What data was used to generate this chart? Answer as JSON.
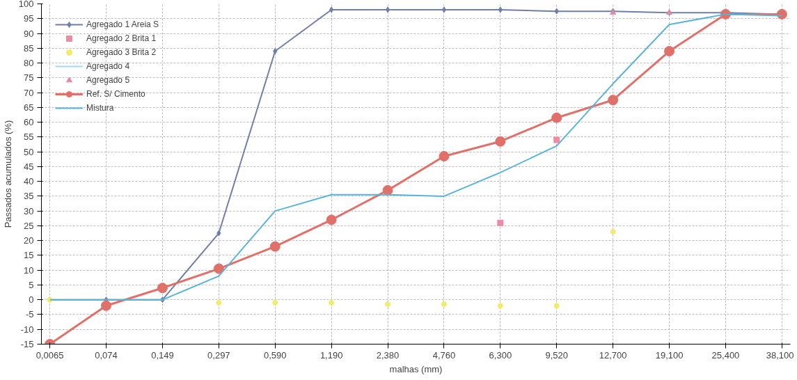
{
  "chart_data": {
    "type": "line",
    "xlabel": "malhas (mm)",
    "ylabel": "Passados acumulados (%)",
    "categories": [
      "0,0065",
      "0,074",
      "0,149",
      "0,297",
      "0,590",
      "1,190",
      "2,380",
      "4,760",
      "6,300",
      "9,520",
      "12,700",
      "19,100",
      "25,400",
      "38,100"
    ],
    "ylim": [
      -15,
      100
    ],
    "yticks": [
      -15,
      -10,
      -5,
      0,
      5,
      10,
      15,
      20,
      25,
      30,
      35,
      40,
      45,
      50,
      55,
      60,
      65,
      70,
      75,
      80,
      85,
      90,
      95,
      100
    ],
    "grid": true,
    "legend": "top left",
    "series": [
      {
        "name": "Agregado 1 Areia S",
        "marker": "diamond",
        "color": "#6f7fa8",
        "values": [
          0,
          0,
          0,
          22.5,
          84,
          98,
          98,
          98,
          98,
          97.5,
          97.5,
          97,
          97,
          96.5
        ]
      },
      {
        "name": "Agregado 2 Brita 1",
        "type": "scatter",
        "marker": "square",
        "color": "#f08aa0",
        "values": [
          null,
          null,
          null,
          null,
          null,
          null,
          null,
          null,
          26,
          54,
          null,
          null,
          null,
          null
        ]
      },
      {
        "name": "Agregado 3 Brita 2",
        "type": "scatter",
        "marker": "circle",
        "color": "#f2ec6a",
        "values": [
          0,
          null,
          null,
          -1,
          -1,
          -1,
          -1.5,
          -1.5,
          -2,
          -2,
          23,
          null,
          null,
          null
        ]
      },
      {
        "name": "Agregado 4",
        "marker": "none",
        "color": "#9fdcef",
        "values": [
          null,
          null,
          null,
          null,
          null,
          null,
          null,
          null,
          null,
          null,
          null,
          null,
          null,
          null
        ]
      },
      {
        "name": "Agregado 5",
        "type": "scatter",
        "marker": "triangle",
        "color": "#e08aa8",
        "values": [
          null,
          null,
          null,
          null,
          null,
          null,
          null,
          null,
          null,
          null,
          97,
          97,
          null,
          null
        ]
      },
      {
        "name": "Ref. S/ Cimento",
        "marker": "circle",
        "color": "#e0706a",
        "values": [
          -15,
          -2,
          4,
          10.5,
          18,
          27,
          37,
          48.5,
          53.5,
          61.5,
          67.5,
          84,
          96.5,
          96.5
        ]
      },
      {
        "name": "Mistura",
        "marker": "none",
        "color": "#5ab4d8",
        "values": [
          0,
          0,
          0,
          8,
          30,
          35.5,
          35.5,
          35,
          43,
          52,
          73,
          93,
          96.5,
          96
        ]
      }
    ]
  }
}
